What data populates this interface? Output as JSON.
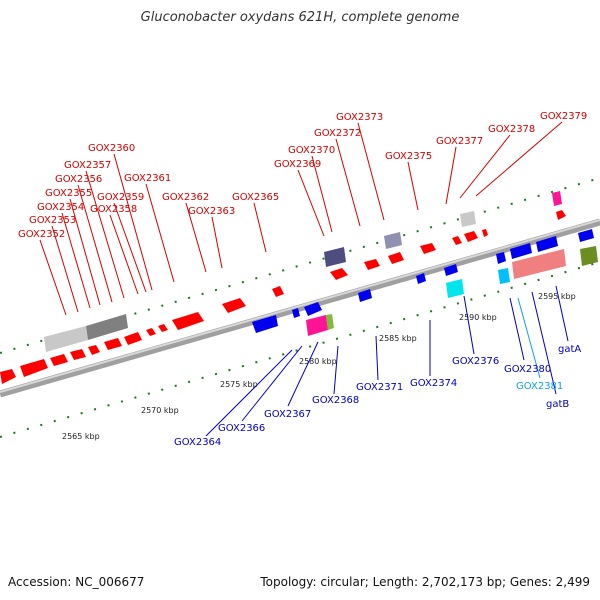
{
  "title": "Gluconobacter oxydans 621H, complete genome",
  "footer": {
    "accession": "Accession: NC_006677",
    "summary": "Topology: circular; Length: 2,702,173 bp; Genes: 2,499"
  },
  "ticks": [
    "2565 kbp",
    "2570 kbp",
    "2575 kbp",
    "2580 kbp",
    "2585 kbp",
    "2590 kbp",
    "2595 kbp"
  ],
  "labels_forward": [
    "GOX2352",
    "GOX2353",
    "GOX2354",
    "GOX2355",
    "GOX2356",
    "GOX2357",
    "GOX2358",
    "GOX2359",
    "GOX2360",
    "GOX2361",
    "GOX2362",
    "GOX2363",
    "GOX2365",
    "GOX2369",
    "GOX2370",
    "GOX2372",
    "GOX2373",
    "GOX2375",
    "GOX2377",
    "GOX2378",
    "GOX2379"
  ],
  "labels_reverse": [
    "GOX2364",
    "GOX2366",
    "GOX2367",
    "GOX2368",
    "GOX2371",
    "GOX2374",
    "GOX2376",
    "GOX2380",
    "GOX2381",
    "gatA",
    "gatB"
  ],
  "colors": {
    "forward_gene": "#ff0000",
    "reverse_gene": "#0000ee",
    "reverse_label": "#0000c0",
    "forward_label": "#d40000",
    "highlight_label": "#10a0e0",
    "backbone": "#808080"
  }
}
